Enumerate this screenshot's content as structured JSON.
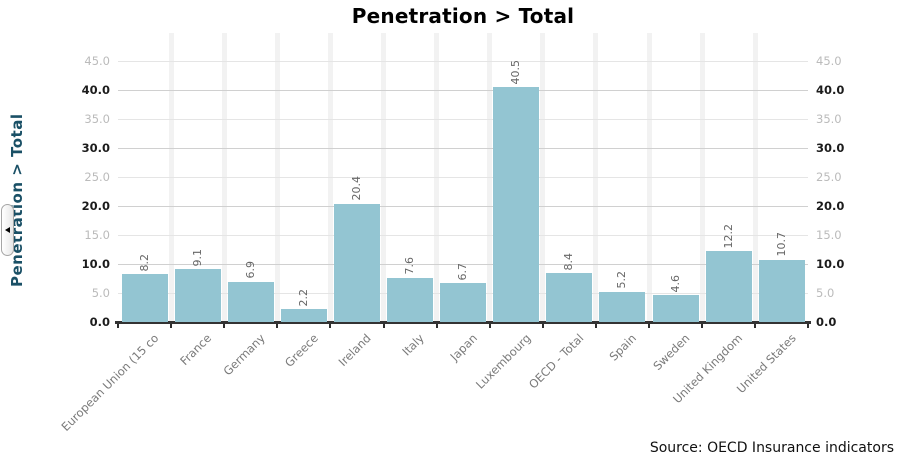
{
  "chart_data": {
    "type": "bar",
    "title": "Penetration > Total",
    "ylabel": "Penetration > Total",
    "xlabel": "",
    "categories": [
      "European Union (15 co",
      "France",
      "Germany",
      "Greece",
      "Ireland",
      "Italy",
      "Japan",
      "Luxembourg",
      "OECD - Total",
      "Spain",
      "Sweden",
      "United Kingdom",
      "United States"
    ],
    "values": [
      8.2,
      9.1,
      6.9,
      2.2,
      20.4,
      7.6,
      6.7,
      40.5,
      8.4,
      5.2,
      4.6,
      12.2,
      10.7
    ],
    "ylim": [
      0,
      45
    ],
    "ytick_step": 5,
    "major_tick_step": 10,
    "grid": true,
    "y_axis_labels_on_both_sides": true,
    "value_labels_rotated_vertical": true,
    "category_labels_rotated_45": true,
    "legend": "none",
    "colors": {
      "bar": "#93c5d2",
      "axis_title": "#1a5066",
      "major_label": "#1c1c1c",
      "minor_label": "#bbbbbb",
      "major_grid": "#d0d0d0",
      "minor_grid": "#e5e5e5",
      "stripe": "#f2f2f2",
      "baseline": "#333333",
      "tick": "#2e2e2e",
      "value_label": "#666666",
      "category_label": "#7a7a7a"
    }
  },
  "source": {
    "text": "Source: OECD Insurance indicators"
  },
  "axis_panel": {
    "collapse_icon": "chevron-left-icon"
  }
}
